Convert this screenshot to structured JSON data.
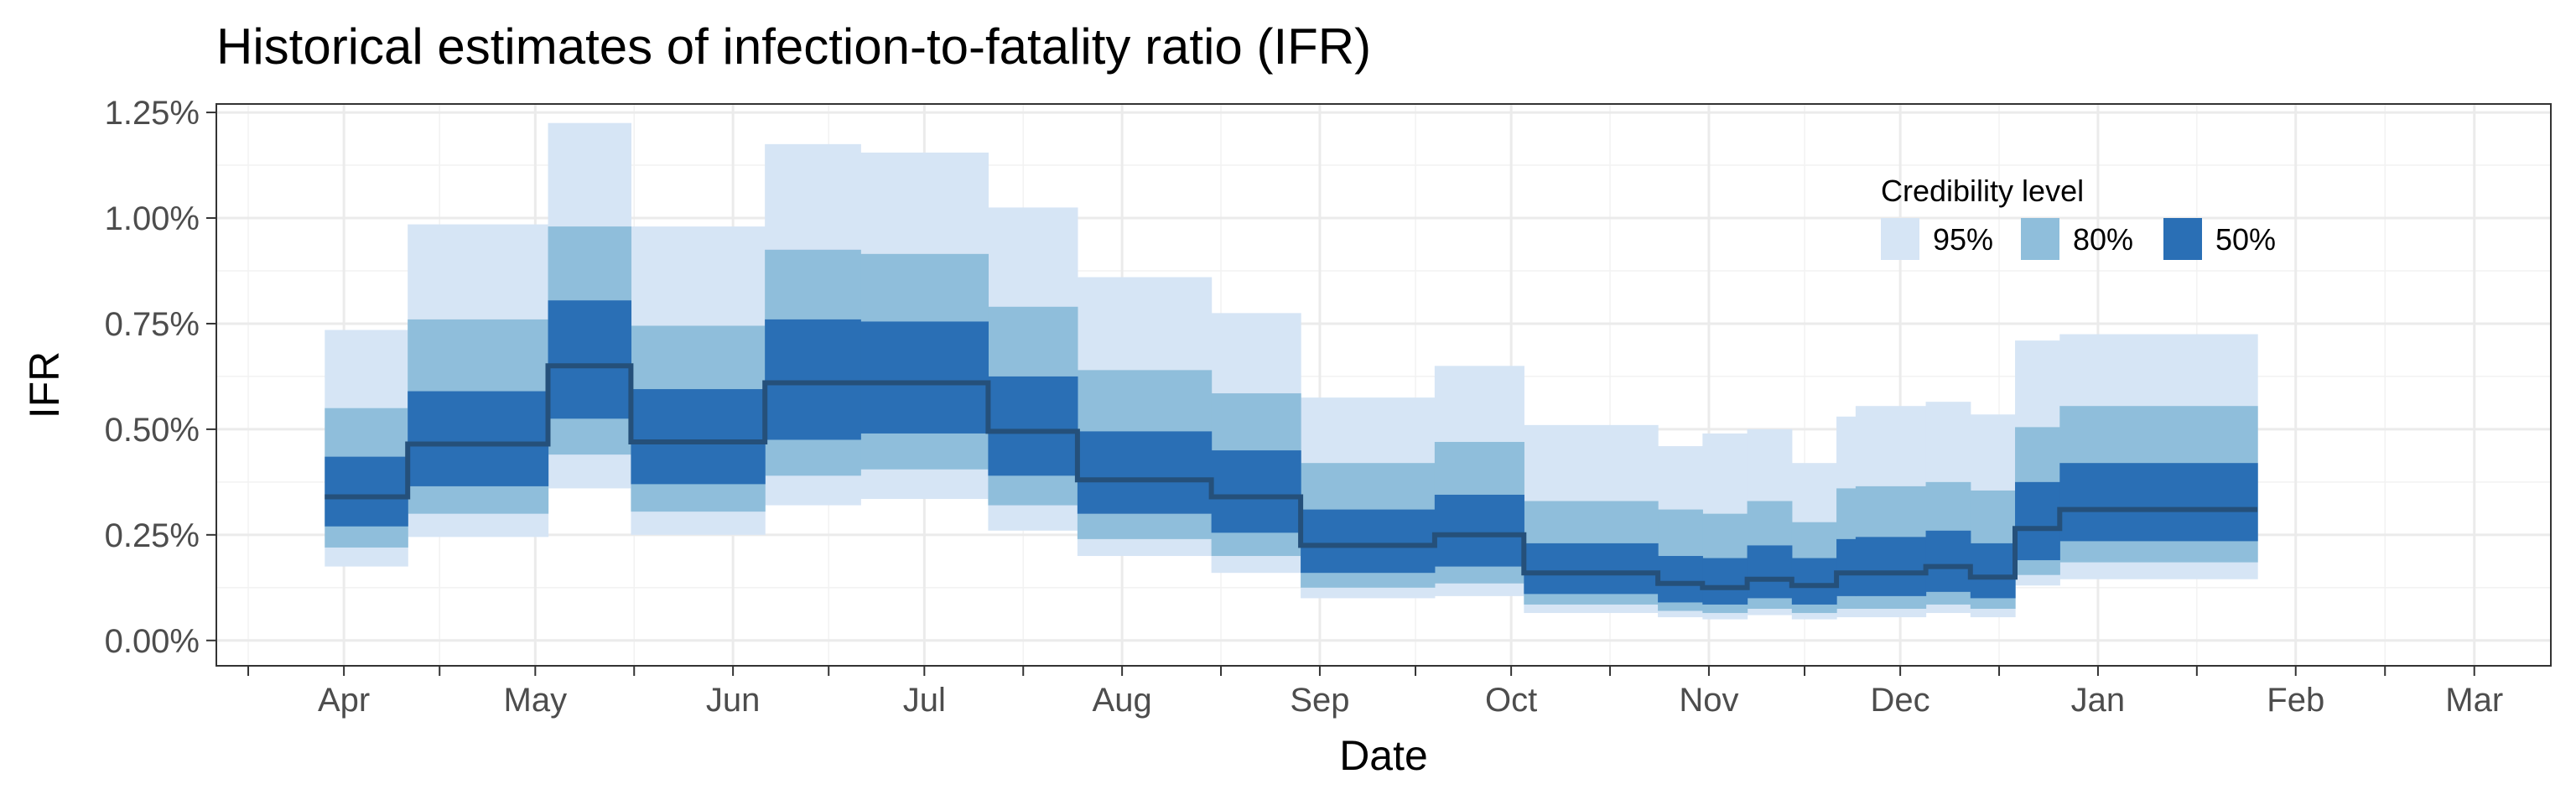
{
  "chart_data": {
    "type": "area",
    "title": "Historical estimates of infection-to-fatality ratio (IFR)",
    "xlabel": "Date",
    "ylabel": "IFR",
    "x_ticks": [
      {
        "label": "Apr",
        "date": "2020-04-01"
      },
      {
        "label": "May",
        "date": "2020-05-01"
      },
      {
        "label": "Jun",
        "date": "2020-06-01"
      },
      {
        "label": "Jul",
        "date": "2020-07-01"
      },
      {
        "label": "Aug",
        "date": "2020-08-01"
      },
      {
        "label": "Sep",
        "date": "2020-09-01"
      },
      {
        "label": "Oct",
        "date": "2020-10-01"
      },
      {
        "label": "Nov",
        "date": "2020-11-01"
      },
      {
        "label": "Dec",
        "date": "2020-12-01"
      },
      {
        "label": "Jan",
        "date": "2021-01-01"
      },
      {
        "label": "Feb",
        "date": "2021-02-01"
      },
      {
        "label": "Mar",
        "date": "2021-03-01"
      }
    ],
    "x_range": [
      "2020-03-12",
      "2021-03-13"
    ],
    "y_ticks": [
      {
        "label": "0.00%",
        "value": 0.0
      },
      {
        "label": "0.25%",
        "value": 0.25
      },
      {
        "label": "0.50%",
        "value": 0.5
      },
      {
        "label": "0.75%",
        "value": 0.75
      },
      {
        "label": "1.00%",
        "value": 1.0
      },
      {
        "label": "1.25%",
        "value": 1.25
      }
    ],
    "ylim": [
      -0.06,
      1.27
    ],
    "grid": true,
    "legend": {
      "title": "Credibility level",
      "placement": "top-right",
      "items": [
        {
          "label": "95%",
          "color": "#d6e5f5"
        },
        {
          "label": "80%",
          "color": "#8fbedb"
        },
        {
          "label": "50%",
          "color": "#2a6fb5"
        }
      ]
    },
    "median_color": "#25507a",
    "steps": [
      {
        "start": "2020-03-29",
        "end": "2020-04-11",
        "median": 0.34,
        "lo95": 0.175,
        "hi95": 0.735,
        "lo80": 0.22,
        "hi80": 0.55,
        "lo50": 0.27,
        "hi50": 0.435
      },
      {
        "start": "2020-04-11",
        "end": "2020-05-03",
        "median": 0.465,
        "lo95": 0.245,
        "hi95": 0.985,
        "lo80": 0.3,
        "hi80": 0.76,
        "lo50": 0.365,
        "hi50": 0.59
      },
      {
        "start": "2020-05-03",
        "end": "2020-05-16",
        "median": 0.65,
        "lo95": 0.36,
        "hi95": 1.225,
        "lo80": 0.44,
        "hi80": 0.98,
        "lo50": 0.525,
        "hi50": 0.805
      },
      {
        "start": "2020-05-16",
        "end": "2020-06-06",
        "median": 0.47,
        "lo95": 0.25,
        "hi95": 0.98,
        "lo80": 0.305,
        "hi80": 0.745,
        "lo50": 0.37,
        "hi50": 0.595
      },
      {
        "start": "2020-06-06",
        "end": "2020-06-21",
        "median": 0.61,
        "lo95": 0.32,
        "hi95": 1.175,
        "lo80": 0.39,
        "hi80": 0.925,
        "lo50": 0.475,
        "hi50": 0.76
      },
      {
        "start": "2020-06-21",
        "end": "2020-07-11",
        "median": 0.61,
        "lo95": 0.335,
        "hi95": 1.155,
        "lo80": 0.405,
        "hi80": 0.915,
        "lo50": 0.49,
        "hi50": 0.755
      },
      {
        "start": "2020-07-11",
        "end": "2020-07-25",
        "median": 0.495,
        "lo95": 0.26,
        "hi95": 1.025,
        "lo80": 0.32,
        "hi80": 0.79,
        "lo50": 0.39,
        "hi50": 0.625
      },
      {
        "start": "2020-07-25",
        "end": "2020-08-15",
        "median": 0.38,
        "lo95": 0.2,
        "hi95": 0.86,
        "lo80": 0.24,
        "hi80": 0.64,
        "lo50": 0.3,
        "hi50": 0.495
      },
      {
        "start": "2020-08-15",
        "end": "2020-08-29",
        "median": 0.34,
        "lo95": 0.16,
        "hi95": 0.775,
        "lo80": 0.2,
        "hi80": 0.585,
        "lo50": 0.255,
        "hi50": 0.45
      },
      {
        "start": "2020-08-29",
        "end": "2020-09-19",
        "median": 0.225,
        "lo95": 0.1,
        "hi95": 0.575,
        "lo80": 0.125,
        "hi80": 0.42,
        "lo50": 0.16,
        "hi50": 0.31
      },
      {
        "start": "2020-09-19",
        "end": "2020-10-03",
        "median": 0.25,
        "lo95": 0.105,
        "hi95": 0.65,
        "lo80": 0.135,
        "hi80": 0.47,
        "lo50": 0.175,
        "hi50": 0.345
      },
      {
        "start": "2020-10-03",
        "end": "2020-10-24",
        "median": 0.16,
        "lo95": 0.065,
        "hi95": 0.51,
        "lo80": 0.085,
        "hi80": 0.33,
        "lo50": 0.11,
        "hi50": 0.23
      },
      {
        "start": "2020-10-24",
        "end": "2020-10-31",
        "median": 0.135,
        "lo95": 0.055,
        "hi95": 0.46,
        "lo80": 0.07,
        "hi80": 0.31,
        "lo50": 0.09,
        "hi50": 0.2
      },
      {
        "start": "2020-10-31",
        "end": "2020-11-07",
        "median": 0.125,
        "lo95": 0.05,
        "hi95": 0.49,
        "lo80": 0.065,
        "hi80": 0.3,
        "lo50": 0.085,
        "hi50": 0.195
      },
      {
        "start": "2020-11-07",
        "end": "2020-11-14",
        "median": 0.145,
        "lo95": 0.06,
        "hi95": 0.5,
        "lo80": 0.075,
        "hi80": 0.33,
        "lo50": 0.1,
        "hi50": 0.225
      },
      {
        "start": "2020-11-14",
        "end": "2020-11-21",
        "median": 0.13,
        "lo95": 0.05,
        "hi95": 0.42,
        "lo80": 0.065,
        "hi80": 0.28,
        "lo50": 0.085,
        "hi50": 0.195
      },
      {
        "start": "2020-11-21",
        "end": "2020-11-24",
        "median": 0.16,
        "lo95": 0.055,
        "hi95": 0.53,
        "lo80": 0.075,
        "hi80": 0.36,
        "lo50": 0.105,
        "hi50": 0.24
      },
      {
        "start": "2020-11-24",
        "end": "2020-12-05",
        "median": 0.16,
        "lo95": 0.055,
        "hi95": 0.555,
        "lo80": 0.075,
        "hi80": 0.365,
        "lo50": 0.105,
        "hi50": 0.245
      },
      {
        "start": "2020-12-05",
        "end": "2020-12-12",
        "median": 0.175,
        "lo95": 0.065,
        "hi95": 0.565,
        "lo80": 0.085,
        "hi80": 0.375,
        "lo50": 0.115,
        "hi50": 0.26
      },
      {
        "start": "2020-12-12",
        "end": "2020-12-19",
        "median": 0.15,
        "lo95": 0.055,
        "hi95": 0.535,
        "lo80": 0.075,
        "hi80": 0.355,
        "lo50": 0.1,
        "hi50": 0.23
      },
      {
        "start": "2020-12-19",
        "end": "2020-12-26",
        "median": 0.265,
        "lo95": 0.13,
        "hi95": 0.71,
        "lo80": 0.155,
        "hi80": 0.505,
        "lo50": 0.19,
        "hi50": 0.375
      },
      {
        "start": "2020-12-26",
        "end": "2021-01-26",
        "median": 0.31,
        "lo95": 0.145,
        "hi95": 0.725,
        "lo80": 0.185,
        "hi80": 0.555,
        "lo50": 0.235,
        "hi50": 0.42
      }
    ]
  }
}
